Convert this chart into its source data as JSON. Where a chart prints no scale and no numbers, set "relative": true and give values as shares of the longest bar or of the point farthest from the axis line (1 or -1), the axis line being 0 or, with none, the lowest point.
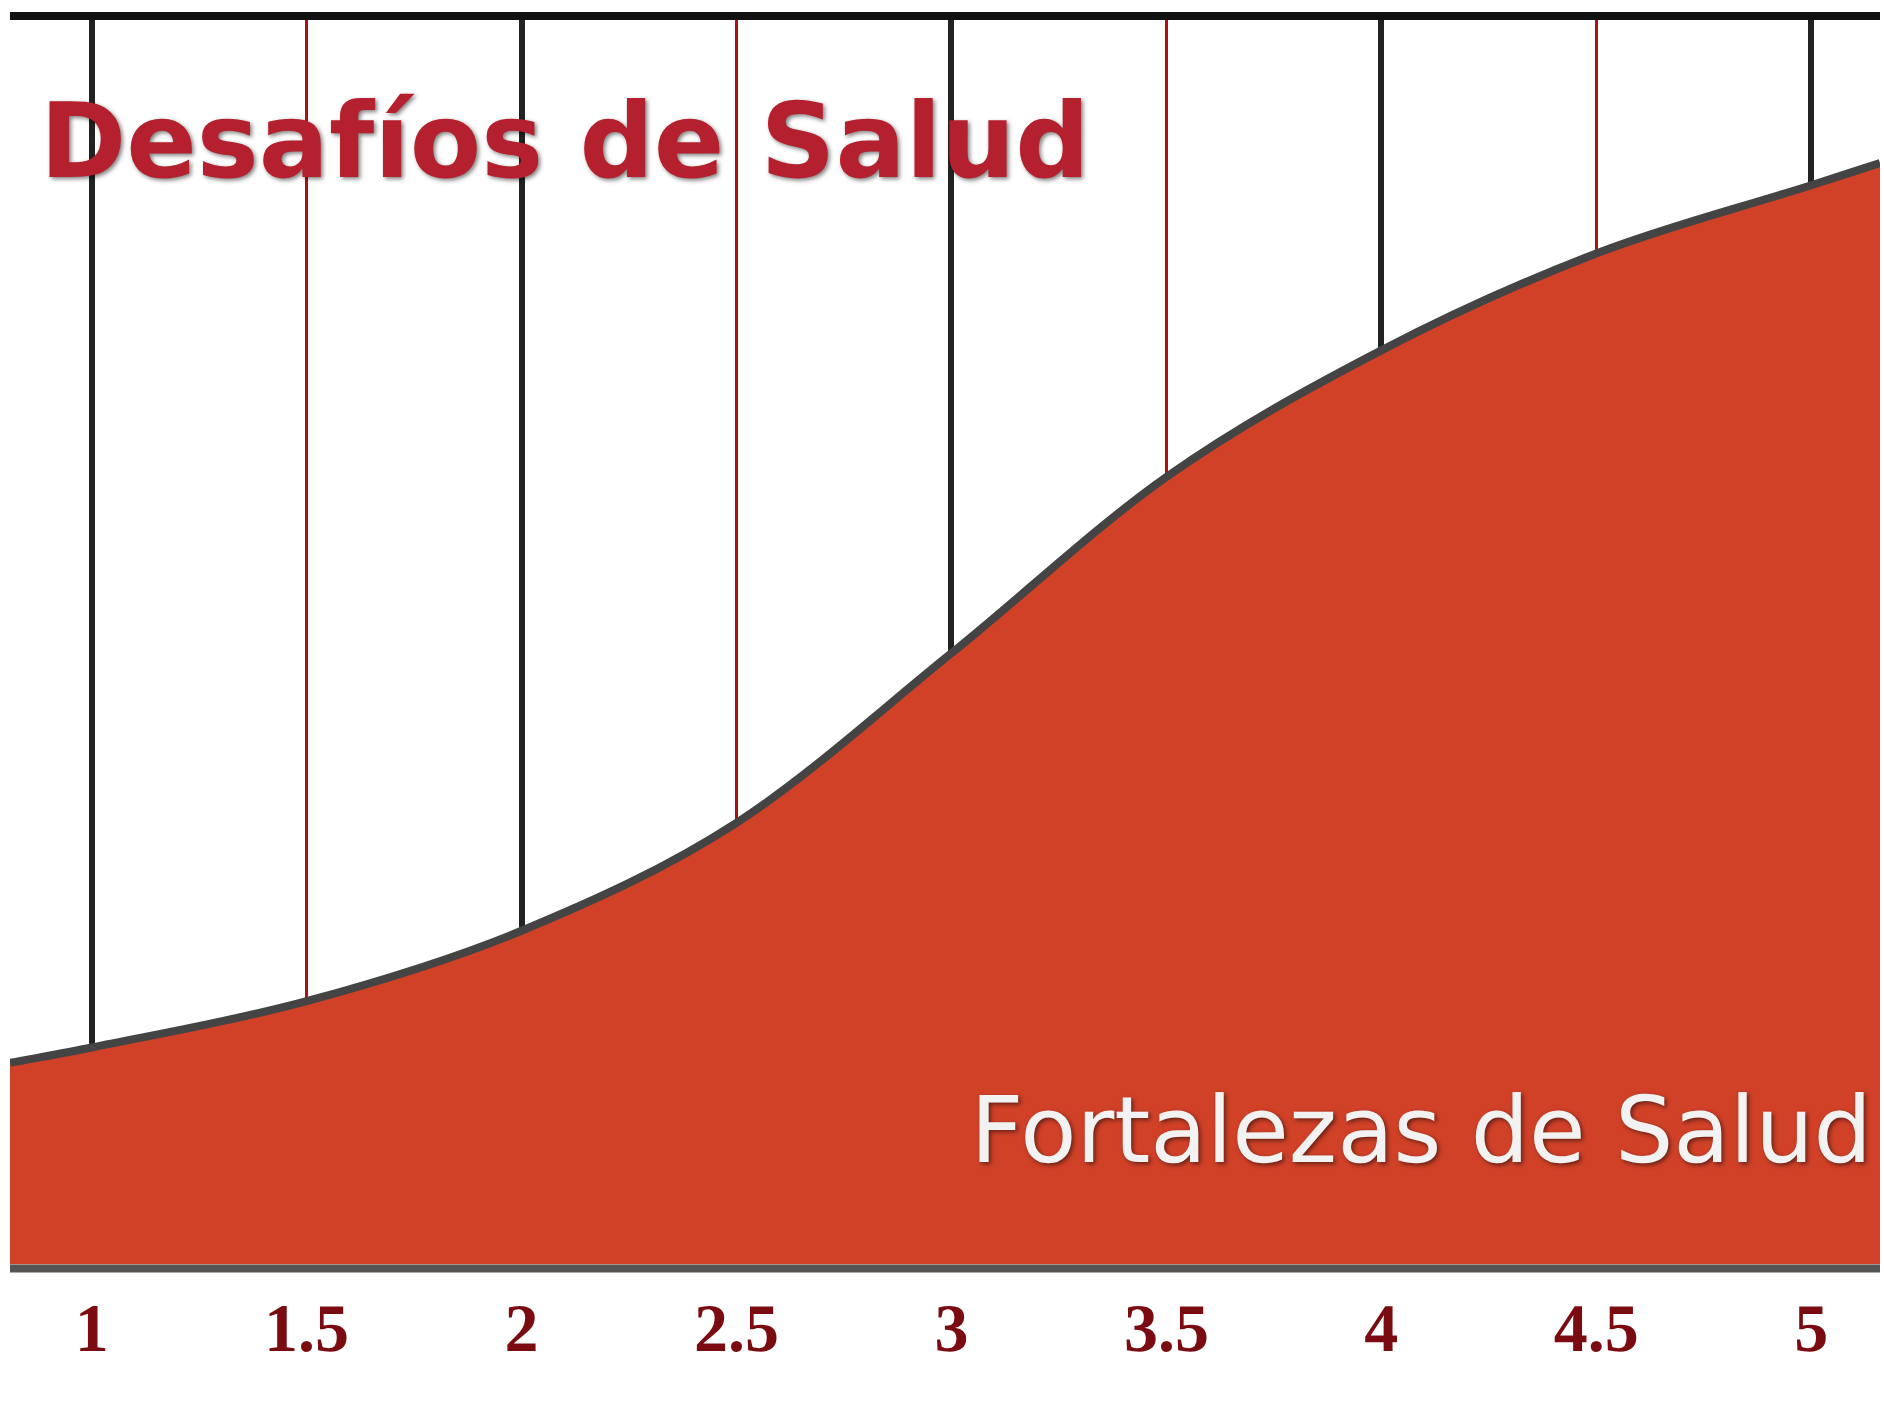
{
  "chart_data": {
    "type": "area",
    "relative": true,
    "x": [
      0.81,
      1,
      1.5,
      2,
      2.5,
      3,
      3.5,
      4,
      4.5,
      5,
      5.16
    ],
    "series": [
      {
        "color": "#d04128",
        "values": [
          0.183,
          0.197,
          0.239,
          0.303,
          0.401,
          0.555,
          0.715,
          0.83,
          0.918,
          0.98,
          1
        ]
      }
    ],
    "xlim": [
      0.81,
      5.16
    ],
    "xticks": [
      1,
      1.5,
      2,
      2.5,
      3,
      3.5,
      4,
      4.5,
      5
    ],
    "grid": "x",
    "tick_labels": "x",
    "legend": false,
    "annotations": [
      "Desafíos de Salud",
      "Fortalezas de Salud"
    ]
  }
}
